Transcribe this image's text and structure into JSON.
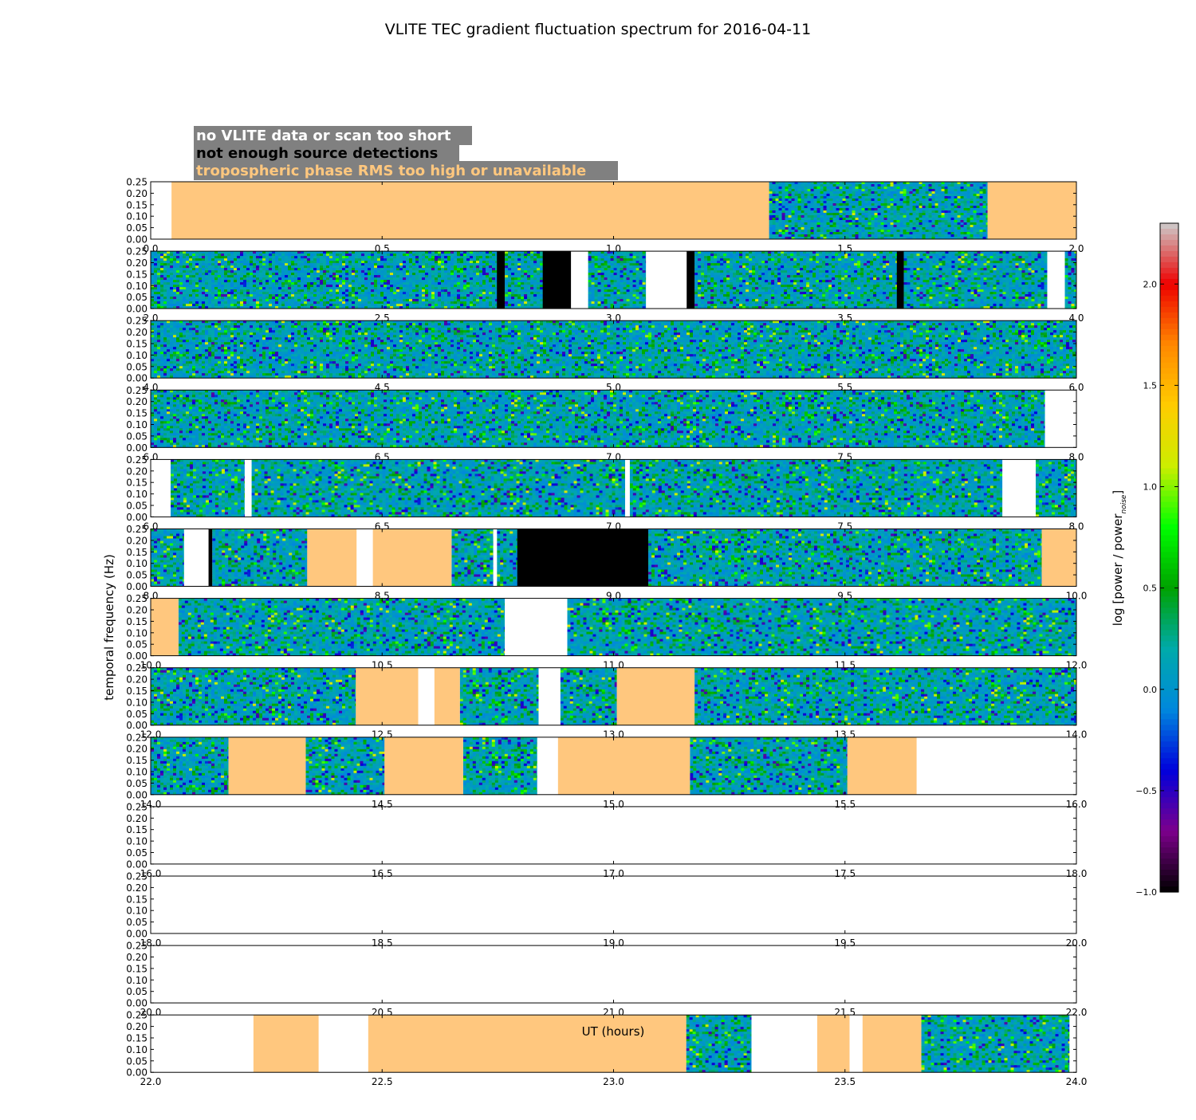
{
  "chart_data": {
    "type": "heatmap",
    "title": "VLITE TEC gradient fluctuation spectrum for 2016-04-11",
    "xlabel": "UT (hours)",
    "ylabel": "temporal frequency (Hz)",
    "colorbar_label_main": "log [power / power",
    "colorbar_label_sub": "noise",
    "colorbar_label_end": "]",
    "colorbar_range": [
      -1.0,
      2.3
    ],
    "colorbar_ticks": [
      "2.0",
      "1.5",
      "1.0",
      "0.5",
      "0.0",
      "−0.5",
      "−1.0"
    ],
    "colorbar_tick_values": [
      2.0,
      1.5,
      1.0,
      0.5,
      0.0,
      -0.5,
      -1.0
    ],
    "colormap": [
      "#000000",
      "#7d008c",
      "#0000dc",
      "#0088dd",
      "#00aaaa",
      "#00a200",
      "#00ff00",
      "#ccee00",
      "#ffcc00",
      "#ff8800",
      "#ee0000",
      "#cccccc"
    ],
    "ylim": [
      0.0,
      0.25
    ],
    "y_ticks": [
      "0.00",
      "0.05",
      "0.10",
      "0.15",
      "0.20",
      "0.25"
    ],
    "y_tick_values": [
      0.0,
      0.05,
      0.1,
      0.15,
      0.2,
      0.25
    ],
    "legend": [
      {
        "label": "no VLITE data or scan too short",
        "color": "#ffffff"
      },
      {
        "label": "not enough source detections",
        "color": "#000000"
      },
      {
        "label": "tropospheric phase RMS too high or unavailable",
        "color": "#ffc77e"
      }
    ],
    "flag_colors": {
      "nodata": "#ffffff",
      "fewsrc": "#000000",
      "trop": "#ffc77e"
    },
    "legend_box_color": "#808080",
    "rows": [
      {
        "x_ticks": [
          "0.0",
          "0.5",
          "1.0",
          "1.5",
          "2.0"
        ],
        "xlim": [
          0.0,
          2.0
        ],
        "flags": [
          [
            "nodata",
            0.0,
            0.045
          ],
          [
            "trop",
            0.045,
            1.336
          ],
          [
            "trop",
            1.808,
            2.0
          ]
        ],
        "data_ranges": [
          [
            1.336,
            1.808
          ]
        ]
      },
      {
        "x_ticks": [
          "2.0",
          "2.5",
          "3.0",
          "3.5",
          "4.0"
        ],
        "xlim": [
          2.0,
          4.0
        ],
        "flags": [
          [
            "fewsrc",
            2.748,
            2.765
          ],
          [
            "fewsrc",
            2.847,
            2.908
          ],
          [
            "nodata",
            2.927,
            2.945
          ],
          [
            "nodata",
            3.07,
            3.158
          ],
          [
            "fewsrc",
            3.158,
            3.175
          ],
          [
            "fewsrc",
            3.612,
            3.627
          ],
          [
            "nodata",
            3.937,
            3.975
          ]
        ],
        "data_ranges": [
          [
            2.0,
            2.748
          ],
          [
            2.765,
            2.847
          ],
          [
            2.945,
            3.07
          ],
          [
            3.175,
            3.612
          ],
          [
            3.627,
            3.937
          ],
          [
            3.975,
            4.0
          ]
        ]
      },
      {
        "x_ticks": [
          "4.0",
          "4.5",
          "5.0",
          "5.5",
          "6.0"
        ],
        "xlim": [
          4.0,
          6.0
        ],
        "flags": [],
        "data_ranges": [
          [
            4.0,
            6.0
          ]
        ]
      },
      {
        "x_ticks": [
          "6.0",
          "6.5",
          "7.0",
          "7.5",
          "8.0"
        ],
        "xlim": [
          6.0,
          8.0
        ],
        "flags": [
          [
            "nodata",
            7.932,
            8.0
          ]
        ],
        "data_ranges": [
          [
            6.0,
            7.932
          ]
        ]
      },
      {
        "x_ticks": [
          "6.0",
          "6.5",
          "7.0",
          "7.5",
          "8.0"
        ],
        "xlim": [
          6.0,
          8.0
        ],
        "flags": [
          [
            "nodata",
            6.0,
            6.043
          ],
          [
            "nodata",
            6.203,
            6.218
          ],
          [
            "nodata",
            7.025,
            7.035
          ],
          [
            "nodata",
            7.84,
            7.912
          ]
        ],
        "data_ranges": [
          [
            6.043,
            6.203
          ],
          [
            6.218,
            7.025
          ],
          [
            7.035,
            7.84
          ],
          [
            7.912,
            8.0
          ]
        ]
      },
      {
        "x_ticks": [
          "8.0",
          "8.5",
          "9.0",
          "9.5",
          "10.0"
        ],
        "xlim": [
          8.0,
          10.0
        ],
        "flags": [
          [
            "nodata",
            8.072,
            8.125
          ],
          [
            "fewsrc",
            8.125,
            8.133
          ],
          [
            "trop",
            8.338,
            8.445
          ],
          [
            "nodata",
            8.445,
            8.48
          ],
          [
            "trop",
            8.48,
            8.65
          ],
          [
            "nodata",
            8.74,
            8.748
          ],
          [
            "fewsrc",
            8.792,
            9.075
          ],
          [
            "trop",
            9.925,
            10.0
          ]
        ],
        "data_ranges": [
          [
            8.0,
            8.072
          ],
          [
            8.133,
            8.338
          ],
          [
            8.65,
            8.74
          ],
          [
            8.748,
            8.792
          ],
          [
            9.075,
            9.925
          ]
        ]
      },
      {
        "x_ticks": [
          "10.0",
          "10.5",
          "11.0",
          "11.5",
          "12.0"
        ],
        "xlim": [
          10.0,
          12.0
        ],
        "flags": [
          [
            "trop",
            10.0,
            10.06
          ],
          [
            "nodata",
            10.765,
            10.9
          ]
        ],
        "data_ranges": [
          [
            10.06,
            10.765
          ],
          [
            10.9,
            12.0
          ]
        ]
      },
      {
        "x_ticks": [
          "12.0",
          "12.5",
          "13.0",
          "13.5",
          "14.0"
        ],
        "xlim": [
          12.0,
          14.0
        ],
        "flags": [
          [
            "trop",
            12.443,
            12.578
          ],
          [
            "nodata",
            12.578,
            12.613
          ],
          [
            "trop",
            12.613,
            12.668
          ],
          [
            "nodata",
            12.838,
            12.885
          ],
          [
            "trop",
            13.007,
            13.175
          ]
        ],
        "data_ranges": [
          [
            12.0,
            12.443
          ],
          [
            12.668,
            12.838
          ],
          [
            12.885,
            13.007
          ],
          [
            13.175,
            14.0
          ]
        ]
      },
      {
        "x_ticks": [
          "14.0",
          "14.5",
          "15.0",
          "15.5",
          "16.0"
        ],
        "xlim": [
          14.0,
          16.0
        ],
        "flags": [
          [
            "trop",
            14.168,
            14.335
          ],
          [
            "trop",
            14.505,
            14.675
          ],
          [
            "nodata",
            14.835,
            14.88
          ],
          [
            "trop",
            14.88,
            15.165
          ],
          [
            "trop",
            15.505,
            15.655
          ],
          [
            "nodata",
            15.655,
            16.0
          ]
        ],
        "data_ranges": [
          [
            14.0,
            14.168
          ],
          [
            14.335,
            14.505
          ],
          [
            14.675,
            14.835
          ],
          [
            15.165,
            15.505
          ]
        ]
      },
      {
        "x_ticks": [
          "16.0",
          "16.5",
          "17.0",
          "17.5",
          "18.0"
        ],
        "xlim": [
          16.0,
          18.0
        ],
        "flags": [],
        "data_ranges": []
      },
      {
        "x_ticks": [
          "18.0",
          "18.5",
          "19.0",
          "19.5",
          "20.0"
        ],
        "xlim": [
          18.0,
          20.0
        ],
        "flags": [],
        "data_ranges": []
      },
      {
        "x_ticks": [
          "20.0",
          "20.5",
          "21.0",
          "21.5",
          "22.0"
        ],
        "xlim": [
          20.0,
          22.0
        ],
        "flags": [],
        "data_ranges": []
      },
      {
        "x_ticks": [
          "22.0",
          "22.5",
          "23.0",
          "23.5",
          "24.0"
        ],
        "xlim": [
          22.0,
          24.0
        ],
        "flags": [
          [
            "nodata",
            22.0,
            22.222
          ],
          [
            "trop",
            22.222,
            22.363
          ],
          [
            "nodata",
            22.363,
            22.47
          ],
          [
            "trop",
            22.47,
            23.157
          ],
          [
            "nodata",
            23.298,
            23.44
          ],
          [
            "trop",
            23.44,
            23.51
          ],
          [
            "nodata",
            23.51,
            23.538
          ],
          [
            "trop",
            23.538,
            23.665
          ],
          [
            "nodata",
            23.985,
            24.0
          ]
        ],
        "data_ranges": [
          [
            23.157,
            23.298
          ],
          [
            23.665,
            23.985
          ]
        ]
      }
    ]
  }
}
